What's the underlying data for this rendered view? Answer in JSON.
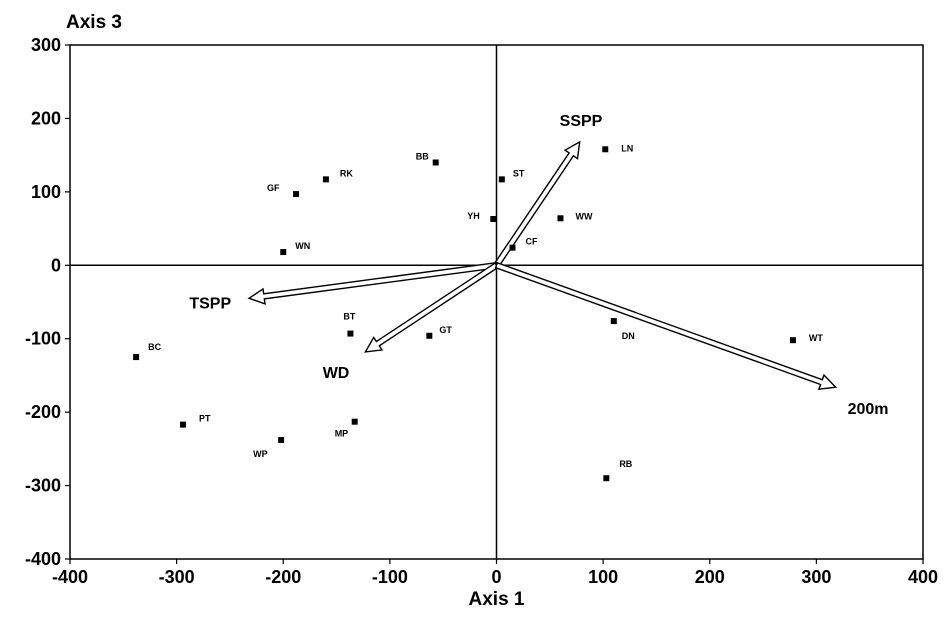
{
  "chart_data": {
    "type": "scatter",
    "xlabel": "Axis 1",
    "ylabel": "Axis 3",
    "xlim": [
      -400,
      400
    ],
    "ylim": [
      -400,
      300
    ],
    "xticks": [
      -400,
      -300,
      -200,
      -100,
      0,
      100,
      200,
      300,
      400
    ],
    "yticks": [
      -400,
      -300,
      -200,
      -100,
      0,
      100,
      200,
      300
    ],
    "grid": false,
    "points": [
      {
        "label": "BB",
        "x": -57,
        "y": 140
      },
      {
        "label": "LN",
        "x": 102,
        "y": 158
      },
      {
        "label": "ST",
        "x": 5,
        "y": 117
      },
      {
        "label": "RK",
        "x": -160,
        "y": 117
      },
      {
        "label": "GF",
        "x": -188,
        "y": 97
      },
      {
        "label": "YH",
        "x": -3,
        "y": 63
      },
      {
        "label": "WW",
        "x": 60,
        "y": 64
      },
      {
        "label": "CF",
        "x": 15,
        "y": 24
      },
      {
        "label": "WN",
        "x": -200,
        "y": 18
      },
      {
        "label": "BT",
        "x": -137,
        "y": -93
      },
      {
        "label": "GT",
        "x": -63,
        "y": -96
      },
      {
        "label": "DN",
        "x": 110,
        "y": -76
      },
      {
        "label": "WT",
        "x": 278,
        "y": -102
      },
      {
        "label": "BC",
        "x": -338,
        "y": -125
      },
      {
        "label": "PT",
        "x": -294,
        "y": -217
      },
      {
        "label": "MP",
        "x": -133,
        "y": -213
      },
      {
        "label": "WP",
        "x": -202,
        "y": -238
      },
      {
        "label": "RB",
        "x": 103,
        "y": -290
      }
    ],
    "vectors": [
      {
        "label": "SSPP",
        "x": 78,
        "y": 168
      },
      {
        "label": "TSPP",
        "x": -232,
        "y": -45
      },
      {
        "label": "WD",
        "x": -123,
        "y": -118
      },
      {
        "label": "200m",
        "x": 318,
        "y": -166
      }
    ]
  }
}
